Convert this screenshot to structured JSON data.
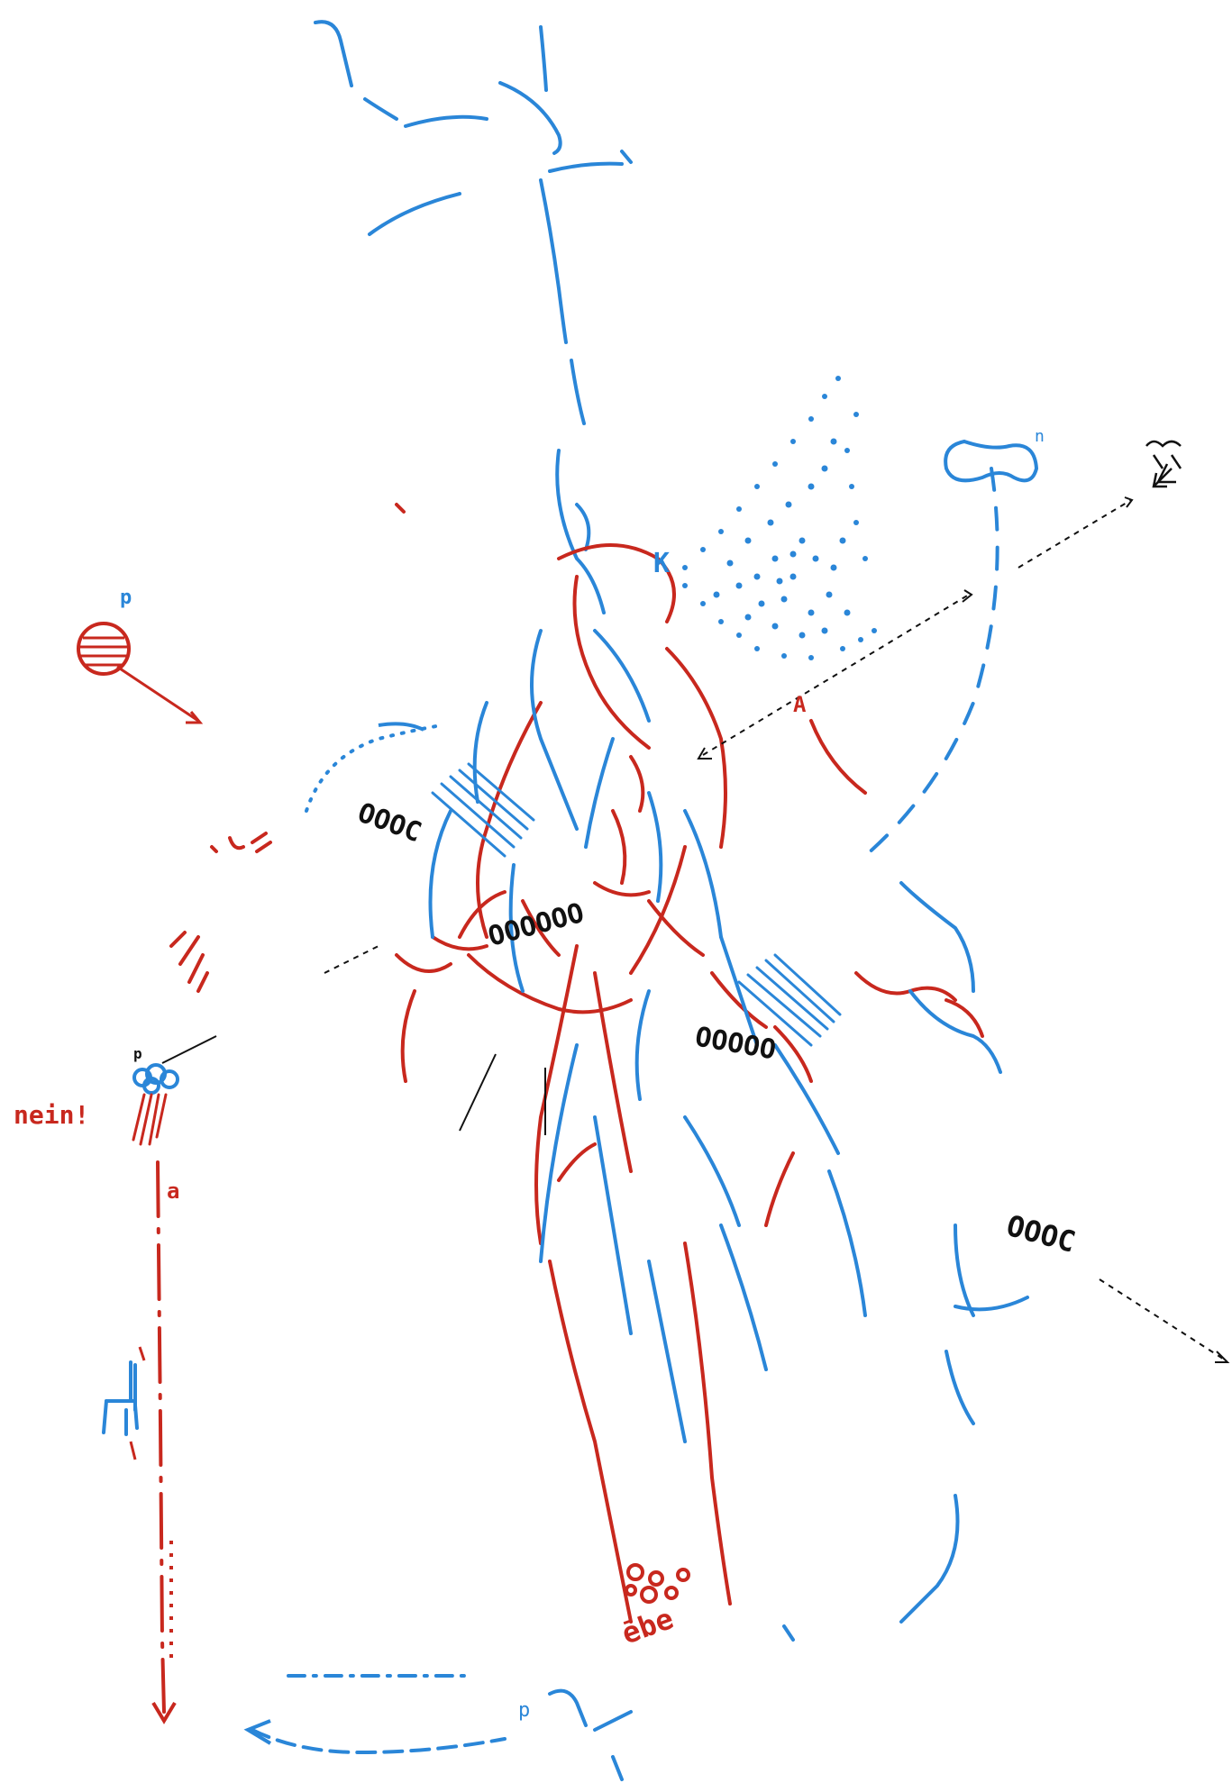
{
  "palette": {
    "red": "#c8281e",
    "blue": "#2a86d8",
    "black": "#111111",
    "paper": "#ffffff"
  },
  "annotations": {
    "nein": "nein!",
    "dynamic_p_left": "p",
    "dynamic_p_cloud": "p",
    "dynamic_p_bottom": "p",
    "letter_a_left": "a",
    "letter_a_lower": "a",
    "letter_a_red": "A",
    "letter_k_blue": "K",
    "letter_n_blue": "n",
    "word_eber": "ēbe",
    "glyph_oooc_right": "OOOC",
    "glyph_oooc_left": "OOOC",
    "glyph_ooo_center": "OOOOOO",
    "glyph_ooooo_right": "OOOOO"
  },
  "icons": [
    "ball-icon",
    "cloud-icon",
    "chair-icon",
    "arrow-icon",
    "stool-icon"
  ]
}
